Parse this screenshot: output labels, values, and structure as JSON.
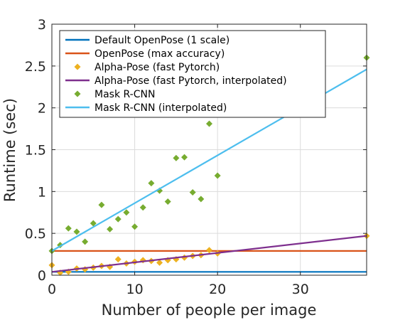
{
  "chart_data": {
    "type": "scatter",
    "xlabel": "Number of people per image",
    "ylabel": "Runtime (sec)",
    "xlim": [
      0,
      38
    ],
    "ylim": [
      0,
      3
    ],
    "xticks": [
      "0",
      "10",
      "20",
      "30"
    ],
    "xtick_values": [
      0,
      10,
      20,
      30
    ],
    "yticks": [
      "0",
      "0.5",
      "1",
      "1.5",
      "2",
      "2.5",
      "3"
    ],
    "ytick_values": [
      0,
      0.5,
      1,
      1.5,
      2,
      2.5,
      3
    ],
    "grid": true,
    "legend_position": "top-left",
    "series": [
      {
        "name": "Default OpenPose (1 scale)",
        "kind": "line",
        "color": "#0072BD",
        "x": [
          0,
          38
        ],
        "y": [
          0.04,
          0.04
        ]
      },
      {
        "name": "OpenPose (max accuracy)",
        "kind": "line",
        "color": "#D95319",
        "x": [
          0,
          38
        ],
        "y": [
          0.29,
          0.29
        ]
      },
      {
        "name": "Alpha-Pose (fast Pytorch)",
        "kind": "scatter",
        "color": "#EDB120",
        "x": [
          0,
          1,
          2,
          3,
          4,
          5,
          6,
          7,
          8,
          9,
          10,
          11,
          12,
          13,
          14,
          15,
          16,
          17,
          18,
          19,
          20,
          38
        ],
        "y": [
          0.12,
          0.03,
          0.04,
          0.08,
          0.07,
          0.09,
          0.11,
          0.1,
          0.19,
          0.14,
          0.16,
          0.18,
          0.17,
          0.15,
          0.18,
          0.19,
          0.21,
          0.23,
          0.24,
          0.3,
          0.26,
          0.47
        ]
      },
      {
        "name": "Alpha-Pose (fast Pytorch, interpolated)",
        "kind": "line",
        "color": "#7E2F8E",
        "x": [
          0,
          38
        ],
        "y": [
          0.04,
          0.47
        ]
      },
      {
        "name": "Mask R-CNN",
        "kind": "scatter",
        "color": "#77AC30",
        "x": [
          0,
          1,
          2,
          3,
          4,
          5,
          6,
          7,
          8,
          9,
          10,
          11,
          12,
          13,
          14,
          15,
          16,
          17,
          18,
          19,
          20,
          38
        ],
        "y": [
          0.29,
          0.36,
          0.56,
          0.52,
          0.4,
          0.62,
          0.84,
          0.55,
          0.67,
          0.75,
          0.58,
          0.81,
          1.1,
          1.01,
          0.88,
          1.4,
          1.41,
          0.99,
          0.91,
          1.81,
          1.19,
          2.6
        ]
      },
      {
        "name": "Mask R-CNN (interpolated)",
        "kind": "line",
        "color": "#4DBEEE",
        "x": [
          0,
          38
        ],
        "y": [
          0.29,
          2.46
        ]
      }
    ]
  }
}
